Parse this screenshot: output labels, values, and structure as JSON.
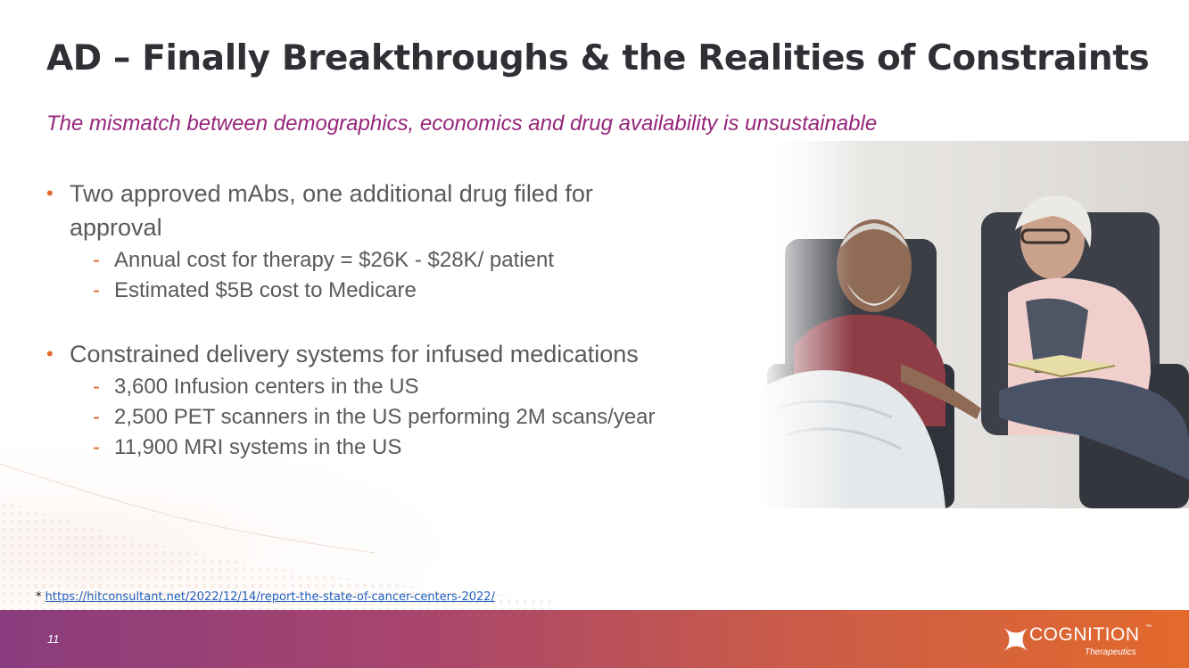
{
  "slide": {
    "title": "AD – Finally Breakthroughs & the Realities of Constraints",
    "subtitle": "The mismatch between demographics, economics and drug availability is unsustainable",
    "bullets": [
      {
        "text": "Two approved mAbs, one additional drug filed for approval",
        "subs": [
          "Annual cost for therapy = $26K - $28K/ patient",
          "Estimated $5B cost to Medicare"
        ]
      },
      {
        "text": "Constrained delivery systems for infused medications",
        "subs": [
          "3,600 Infusion centers in the US",
          "2,500 PET scanners in the US performing 2M scans/year",
          "11,900 MRI systems in the US"
        ]
      }
    ],
    "bullet_marker": "•",
    "sub_marker": "-",
    "footnote": {
      "marker": "*",
      "link": "https://hitconsultant.net/2022/12/14/report-the-state-of-cancer-centers-2022/"
    },
    "page_number": "11",
    "logo": {
      "name": "COGNITION",
      "tm": "™",
      "tagline": "Therapeutics"
    },
    "colors": {
      "title": "#2f2f36",
      "subtitle": "#96267a",
      "accent": "#e26a2c",
      "body_text": "#5a5a5a",
      "footer_start": "#8a3c7e",
      "footer_end": "#e36a2c"
    }
  }
}
